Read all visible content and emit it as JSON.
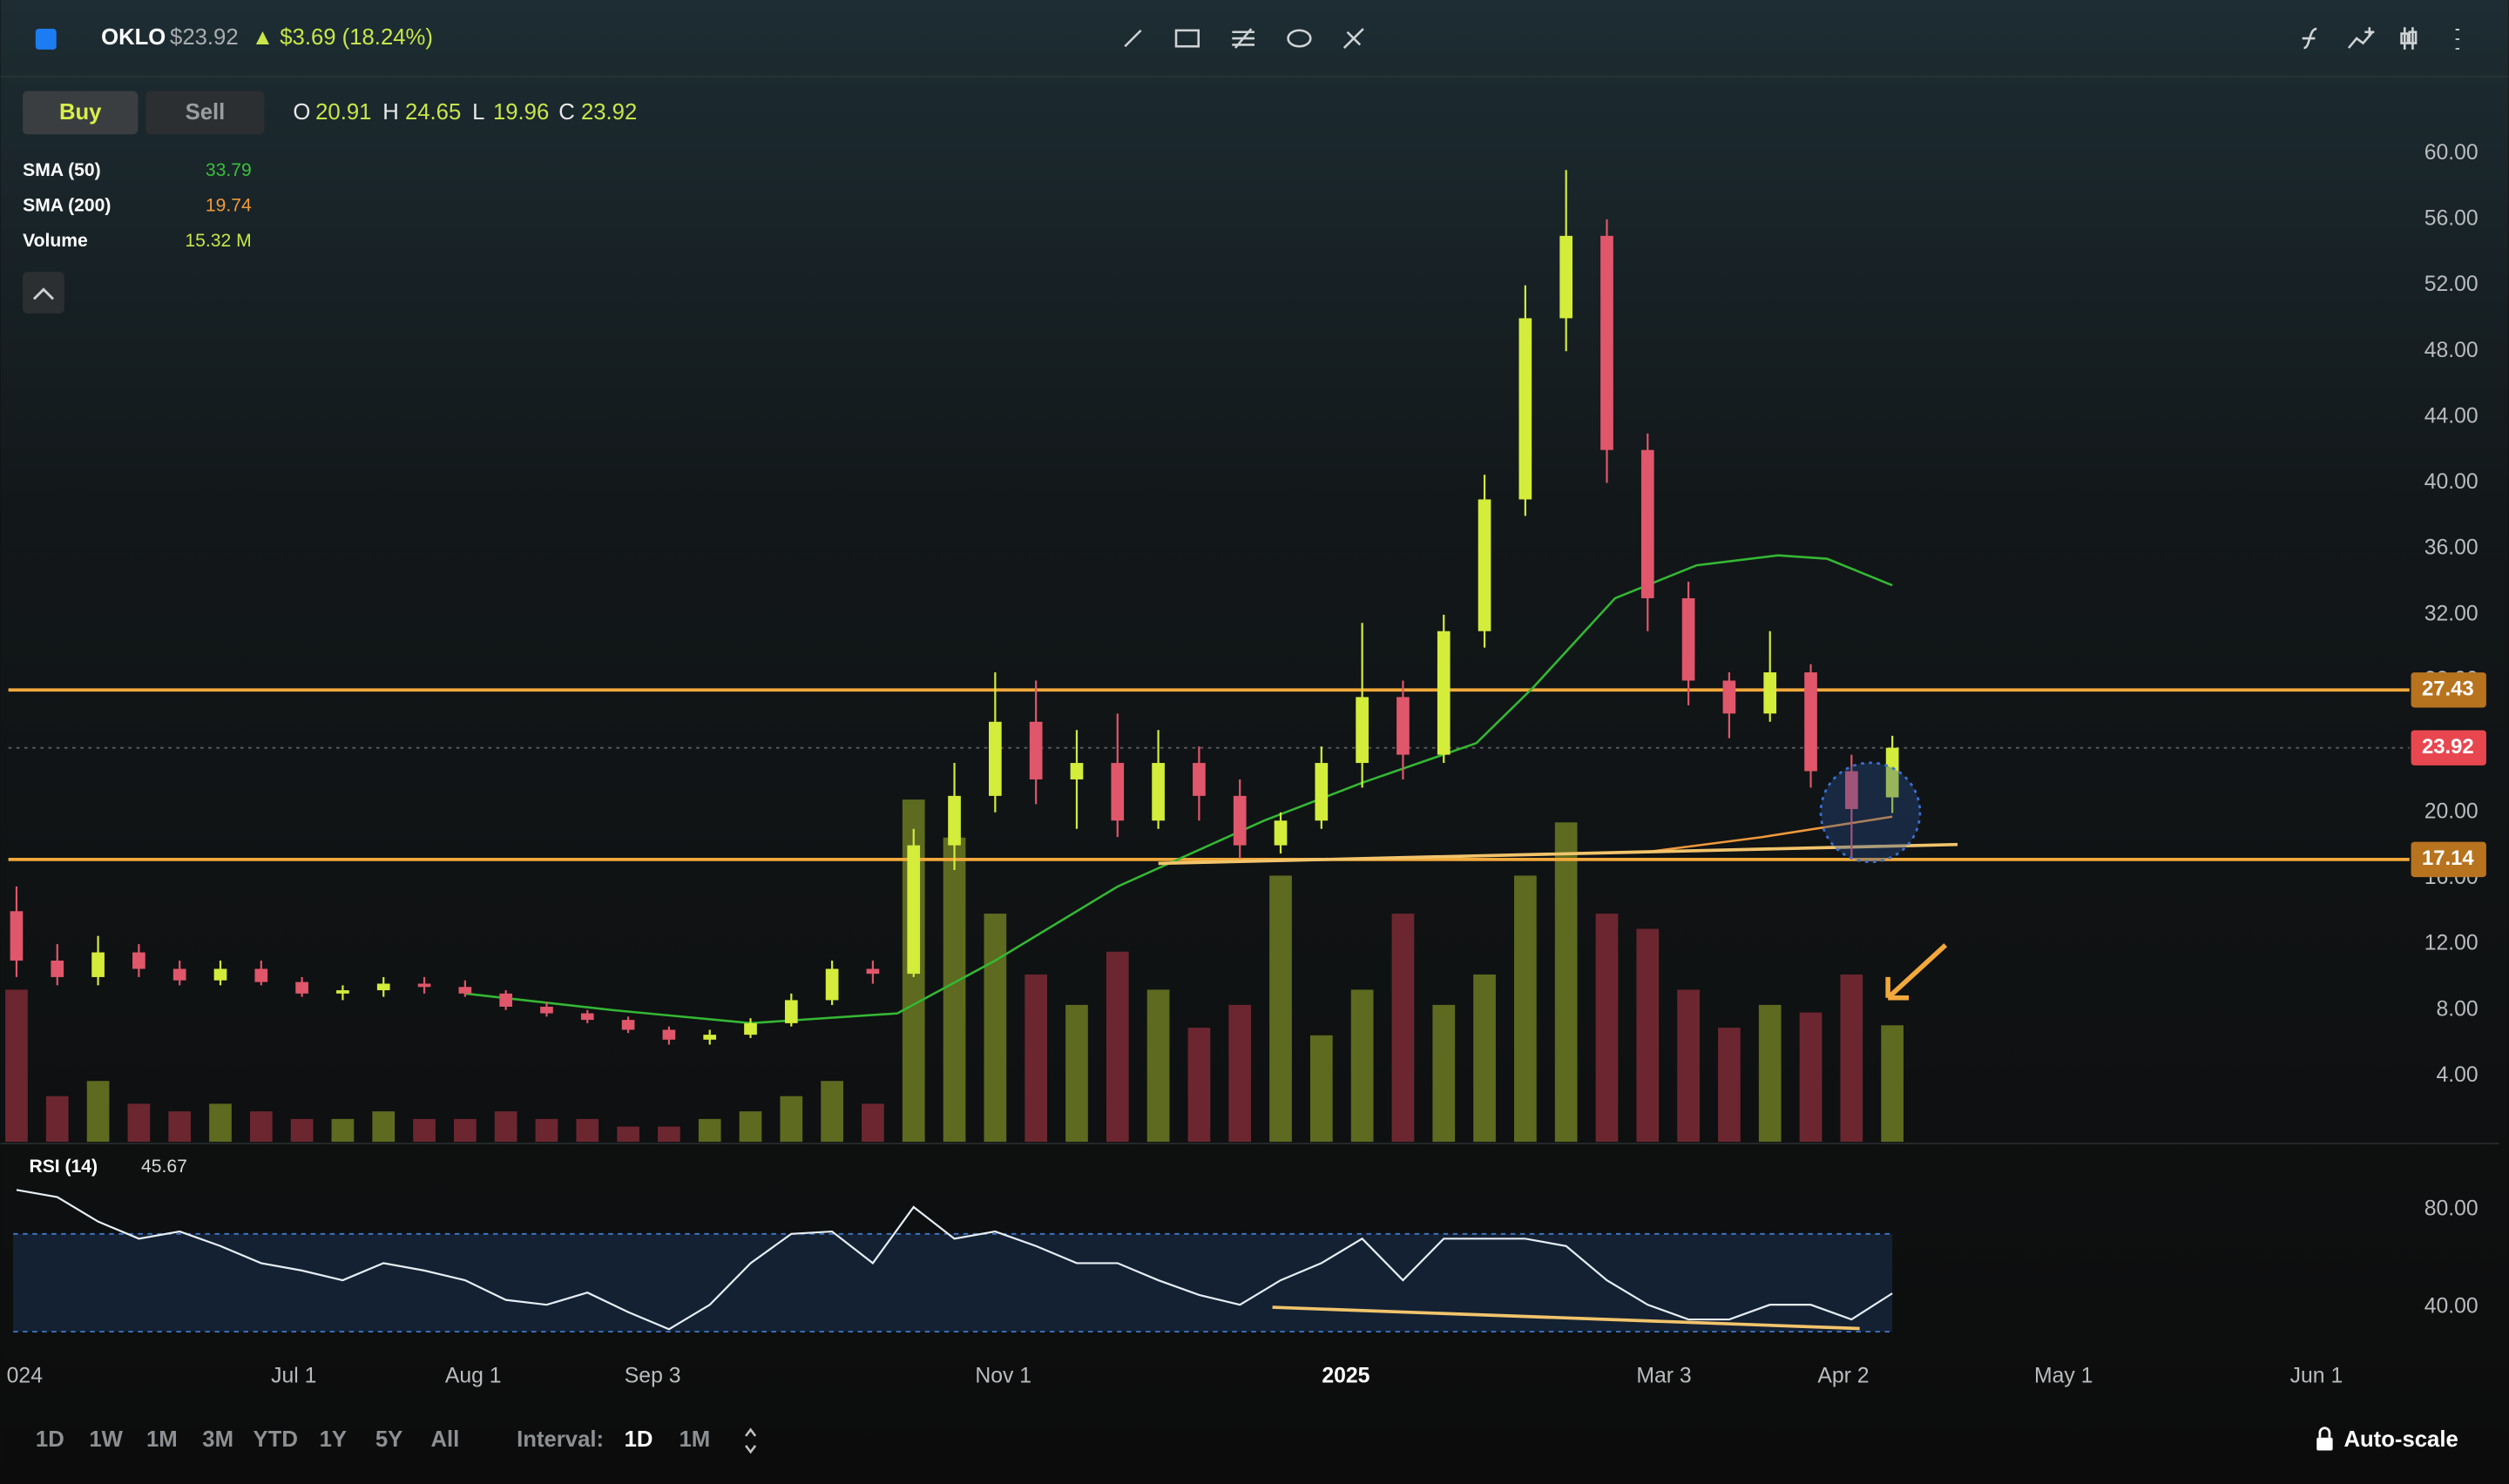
{
  "header": {
    "symbol": "OKLO",
    "price": "$23.92",
    "change": "▲ $3.69 (18.24%)"
  },
  "buttons": [
    "Buy",
    "Sell"
  ],
  "ohlc_labels": [
    "O",
    "H",
    "L",
    "C"
  ],
  "chart_data": {
    "type": "candlestick",
    "x": [
      -34,
      -29,
      -24,
      -19,
      -14,
      -9,
      -4,
      1,
      6,
      11,
      16,
      21,
      26,
      31,
      36,
      41,
      46,
      51,
      56,
      61,
      66,
      71,
      76,
      81,
      86,
      91,
      96,
      101,
      106,
      111,
      116,
      121,
      126,
      131,
      136,
      141,
      146,
      151,
      156,
      161,
      166,
      171,
      176,
      181,
      186,
      191,
      196
    ],
    "open": [
      14,
      11,
      10,
      11.5,
      10.5,
      9.8,
      10.5,
      9.7,
      9,
      9.2,
      9.6,
      9.4,
      9,
      8.2,
      7.8,
      7.4,
      6.8,
      6.2,
      6.5,
      7.2,
      8.6,
      10.5,
      10.2,
      18,
      21,
      25.5,
      22,
      23,
      19.5,
      23,
      21,
      18,
      19.5,
      23,
      27,
      23.5,
      31,
      39,
      50,
      55,
      42,
      33,
      28,
      26,
      28.5,
      22.5,
      20.91
    ],
    "high": [
      15.5,
      12,
      12.5,
      12,
      11,
      11,
      11,
      10,
      9.5,
      10,
      10,
      9.8,
      9.2,
      8.5,
      8,
      7.6,
      7,
      6.8,
      7.5,
      9,
      11,
      11,
      19,
      23,
      28.5,
      28,
      25,
      26,
      25,
      24,
      22,
      20,
      24,
      31.5,
      28,
      32,
      40.5,
      52,
      59,
      56,
      43,
      34,
      28.5,
      31,
      29,
      23.5,
      24.65
    ],
    "low": [
      10,
      9.5,
      9.5,
      10,
      9.5,
      9.5,
      9.5,
      8.8,
      8.6,
      8.8,
      9,
      8.8,
      8,
      7.6,
      7.2,
      6.6,
      5.9,
      5.9,
      6.3,
      7,
      8.3,
      9.6,
      10,
      16.5,
      20,
      20.5,
      19,
      18.5,
      19,
      19.5,
      17.2,
      17.5,
      19,
      21.5,
      22,
      23,
      30,
      38,
      48,
      40,
      31,
      26.5,
      24.5,
      25.5,
      21.5,
      17.2,
      19.96
    ],
    "close": [
      11,
      10,
      11.5,
      10.5,
      9.8,
      10.5,
      9.7,
      9,
      9.2,
      9.6,
      9.4,
      9,
      8.2,
      7.8,
      7.4,
      6.8,
      6.2,
      6.5,
      7.2,
      8.6,
      10.5,
      10.2,
      18,
      21,
      25.5,
      22,
      23,
      19.5,
      23,
      21,
      18,
      19.5,
      23,
      27,
      23.5,
      31,
      39,
      50,
      55,
      42,
      33,
      28,
      26,
      28.5,
      22.5,
      20.2,
      23.92
    ],
    "up_color": "#d4ec3a",
    "down_color": "#e0566a",
    "volume": {
      "name": "Volume",
      "value_label": "15.32 M",
      "up_color": "#6b7a22",
      "down_color": "#7c2a35",
      "values": [
        20,
        6,
        8,
        5,
        4,
        5,
        4,
        3,
        3,
        4,
        3,
        3,
        4,
        3,
        3,
        2,
        2,
        3,
        4,
        6,
        8,
        5,
        45,
        40,
        30,
        22,
        18,
        25,
        20,
        15,
        18,
        35,
        14,
        20,
        30,
        18,
        22,
        35,
        42,
        30,
        28,
        20,
        15,
        18,
        17,
        22,
        15.32
      ]
    },
    "sma": [
      {
        "name": "SMA (50)",
        "color": "#34b834",
        "x": [
          21,
          39,
          56,
          74,
          86,
          101,
          119,
          131,
          145,
          152,
          162,
          172,
          182,
          188,
          196
        ],
        "values": [
          9,
          8,
          7.2,
          7.8,
          11,
          15.5,
          19.5,
          21.8,
          24.2,
          27.6,
          33,
          35,
          35.6,
          35.4,
          33.79
        ]
      },
      {
        "name": "SMA (200)",
        "color": "#f0993a",
        "x": [
          166,
          180,
          196
        ],
        "values": [
          17.6,
          18.5,
          19.74
        ]
      }
    ],
    "levels": [
      {
        "value": 27.43,
        "color": "#f2a93b"
      },
      {
        "value": 17.14,
        "color": "#f2a93b"
      }
    ],
    "last_price_color": "#e8474f",
    "trendline": {
      "x": [
        106,
        204
      ],
      "values": [
        16.9,
        18.05
      ],
      "color": "#f2c46b"
    },
    "xlim": [
      -35,
      270
    ],
    "xticks": [
      {
        "value": -33,
        "label": "024"
      },
      {
        "value": 0,
        "label": "Jul 1"
      },
      {
        "value": 22,
        "label": "Aug 1"
      },
      {
        "value": 44,
        "label": "Sep 3"
      },
      {
        "value": 87,
        "label": "Nov 1"
      },
      {
        "value": 129,
        "label": "2025",
        "bold": true
      },
      {
        "value": 168,
        "label": "Mar 3"
      },
      {
        "value": 190,
        "label": "Apr 2"
      },
      {
        "value": 217,
        "label": "May 1"
      },
      {
        "value": 248,
        "label": "Jun 1"
      }
    ],
    "ylim": [
      0,
      62
    ],
    "yticks": [
      {
        "value": 4,
        "label": "4.00"
      },
      {
        "value": 8,
        "label": "8.00"
      },
      {
        "value": 12,
        "label": "12.00"
      },
      {
        "value": 16,
        "label": "16.00"
      },
      {
        "value": 20,
        "label": "20.00"
      },
      {
        "value": 24,
        "label": "24.00"
      },
      {
        "value": 28,
        "label": "28.00"
      },
      {
        "value": 32,
        "label": "32.00"
      },
      {
        "value": 36,
        "label": "36.00"
      },
      {
        "value": 40,
        "label": "40.00"
      },
      {
        "value": 44,
        "label": "44.00"
      },
      {
        "value": 48,
        "label": "48.00"
      },
      {
        "value": 52,
        "label": "52.00"
      },
      {
        "value": 56,
        "label": "56.00"
      },
      {
        "value": 60,
        "label": "60.00"
      }
    ],
    "rsi": {
      "name": "RSI (14)",
      "color": "#e6eef5",
      "values": [
        88,
        85,
        75,
        68,
        71,
        65,
        58,
        55,
        51,
        58,
        55,
        51,
        43,
        41,
        46,
        38,
        31,
        41,
        58,
        70,
        71,
        58,
        81,
        68,
        71,
        65,
        58,
        58,
        51,
        45,
        41,
        51,
        58,
        68,
        51,
        68,
        68,
        68,
        65,
        51,
        41,
        35,
        35,
        41,
        41,
        35,
        45.67
      ],
      "ylim": [
        22,
        107
      ],
      "yticks": [
        {
          "value": 40,
          "label": "40.00"
        },
        {
          "value": 80,
          "label": "80.00"
        }
      ],
      "bands": [
        30,
        70
      ],
      "trendline": {
        "x": [
          120,
          192
        ],
        "values": [
          40,
          31.3
        ],
        "color": "#f2c46b"
      }
    }
  },
  "footer": {
    "ranges": [
      "1D",
      "1W",
      "1M",
      "3M",
      "YTD",
      "1Y",
      "5Y",
      "All"
    ],
    "interval_label": "Interval:",
    "intervals": [
      "1D",
      "1M"
    ],
    "autoscale": "Auto-scale"
  }
}
